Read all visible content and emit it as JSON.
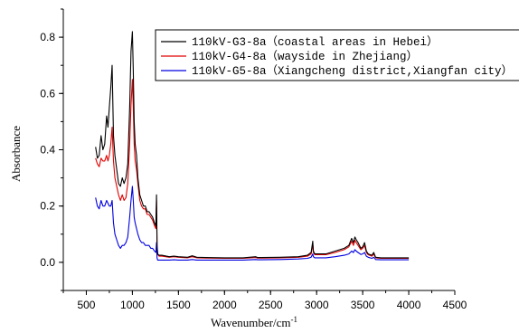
{
  "chart_data": {
    "type": "line",
    "title": "",
    "xlabel": "Wavenumber/cm",
    "xlabel_superscript": "-1",
    "ylabel": "Absorbance",
    "xlim": [
      250,
      4500
    ],
    "ylim": [
      -0.1,
      0.9
    ],
    "x_ticks": [
      500,
      1000,
      1500,
      2000,
      2500,
      3000,
      3500,
      4000,
      4500
    ],
    "x_tick_labels": [
      "500",
      "1000",
      "1500",
      "2000",
      "2500",
      "3000",
      "3500",
      "4000",
      "4500"
    ],
    "y_ticks": [
      0.0,
      0.2,
      0.4,
      0.6,
      0.8
    ],
    "y_tick_labels": [
      "0.0",
      "0.2",
      "0.4",
      "0.6",
      "0.8"
    ],
    "grid": false,
    "legend_position": "top-right",
    "series": [
      {
        "name": "110kV-G3-8a（coastal areas in Hebei）",
        "color": "#000000",
        "x": [
          600,
          620,
          640,
          660,
          680,
          700,
          720,
          735,
          750,
          765,
          780,
          795,
          810,
          830,
          850,
          870,
          890,
          910,
          930,
          950,
          970,
          985,
          1000,
          1010,
          1020,
          1030,
          1045,
          1060,
          1080,
          1100,
          1120,
          1140,
          1160,
          1180,
          1200,
          1220,
          1240,
          1255,
          1262,
          1268,
          1275,
          1290,
          1320,
          1400,
          1450,
          1500,
          1600,
          1650,
          1700,
          1800,
          2000,
          2200,
          2340,
          2360,
          2400,
          2600,
          2800,
          2900,
          2940,
          2958,
          2965,
          2980,
          3000,
          3100,
          3200,
          3300,
          3350,
          3380,
          3400,
          3415,
          3430,
          3450,
          3480,
          3500,
          3520,
          3540,
          3560,
          3600,
          3620,
          3640,
          3700,
          3800,
          3900,
          4000
        ],
        "y": [
          0.41,
          0.37,
          0.38,
          0.45,
          0.4,
          0.42,
          0.52,
          0.48,
          0.55,
          0.62,
          0.7,
          0.45,
          0.38,
          0.33,
          0.28,
          0.27,
          0.3,
          0.28,
          0.3,
          0.35,
          0.55,
          0.75,
          0.82,
          0.68,
          0.5,
          0.42,
          0.38,
          0.3,
          0.24,
          0.22,
          0.2,
          0.2,
          0.18,
          0.18,
          0.17,
          0.16,
          0.14,
          0.13,
          0.24,
          0.06,
          0.03,
          0.025,
          0.025,
          0.02,
          0.022,
          0.02,
          0.018,
          0.023,
          0.018,
          0.017,
          0.016,
          0.016,
          0.02,
          0.017,
          0.017,
          0.018,
          0.02,
          0.025,
          0.035,
          0.075,
          0.04,
          0.03,
          0.03,
          0.03,
          0.04,
          0.05,
          0.06,
          0.085,
          0.07,
          0.09,
          0.08,
          0.07,
          0.05,
          0.055,
          0.07,
          0.04,
          0.03,
          0.025,
          0.035,
          0.018,
          0.016,
          0.016,
          0.016,
          0.016
        ]
      },
      {
        "name": "110kV-G4-8a（wayside in Zhejiang）",
        "color": "#e00000",
        "x": [
          600,
          620,
          640,
          660,
          680,
          700,
          720,
          735,
          750,
          765,
          780,
          795,
          810,
          830,
          850,
          870,
          890,
          910,
          930,
          950,
          970,
          985,
          1000,
          1010,
          1020,
          1030,
          1045,
          1060,
          1080,
          1100,
          1120,
          1140,
          1160,
          1180,
          1200,
          1220,
          1240,
          1255,
          1262,
          1268,
          1275,
          1290,
          1320,
          1400,
          1450,
          1500,
          1600,
          1650,
          1700,
          1800,
          2000,
          2200,
          2340,
          2360,
          2400,
          2600,
          2800,
          2900,
          2940,
          2958,
          2965,
          2980,
          3000,
          3100,
          3200,
          3300,
          3350,
          3380,
          3400,
          3415,
          3430,
          3450,
          3480,
          3500,
          3520,
          3540,
          3560,
          3600,
          3620,
          3640,
          3700,
          3800,
          3900,
          4000
        ],
        "y": [
          0.37,
          0.35,
          0.34,
          0.37,
          0.36,
          0.36,
          0.38,
          0.36,
          0.38,
          0.42,
          0.48,
          0.36,
          0.3,
          0.27,
          0.24,
          0.22,
          0.24,
          0.22,
          0.23,
          0.28,
          0.42,
          0.56,
          0.65,
          0.55,
          0.42,
          0.36,
          0.33,
          0.28,
          0.22,
          0.2,
          0.19,
          0.19,
          0.17,
          0.17,
          0.16,
          0.15,
          0.13,
          0.12,
          0.22,
          0.055,
          0.028,
          0.022,
          0.022,
          0.018,
          0.02,
          0.018,
          0.016,
          0.02,
          0.016,
          0.015,
          0.014,
          0.014,
          0.017,
          0.015,
          0.015,
          0.016,
          0.018,
          0.022,
          0.03,
          0.065,
          0.035,
          0.027,
          0.027,
          0.027,
          0.035,
          0.045,
          0.055,
          0.075,
          0.06,
          0.078,
          0.07,
          0.06,
          0.045,
          0.05,
          0.06,
          0.035,
          0.027,
          0.022,
          0.03,
          0.016,
          0.014,
          0.014,
          0.014,
          0.014
        ]
      },
      {
        "name": "110kV-G5-8a（Xiangcheng district,Xiangfan city）",
        "color": "#0000e0",
        "x": [
          600,
          620,
          640,
          660,
          680,
          700,
          720,
          735,
          750,
          765,
          780,
          795,
          810,
          830,
          850,
          870,
          890,
          910,
          930,
          950,
          970,
          985,
          1000,
          1010,
          1020,
          1030,
          1045,
          1060,
          1080,
          1100,
          1120,
          1140,
          1160,
          1180,
          1200,
          1220,
          1240,
          1255,
          1262,
          1268,
          1275,
          1290,
          1320,
          1400,
          1450,
          1500,
          1600,
          1650,
          1700,
          1800,
          2000,
          2200,
          2340,
          2360,
          2400,
          2600,
          2800,
          2900,
          2940,
          2958,
          2965,
          2980,
          3000,
          3100,
          3200,
          3300,
          3350,
          3380,
          3400,
          3415,
          3430,
          3450,
          3480,
          3500,
          3520,
          3540,
          3560,
          3600,
          3620,
          3640,
          3700,
          3800,
          3900,
          4000
        ],
        "y": [
          0.23,
          0.2,
          0.19,
          0.22,
          0.2,
          0.2,
          0.22,
          0.21,
          0.2,
          0.2,
          0.22,
          0.14,
          0.1,
          0.08,
          0.06,
          0.05,
          0.06,
          0.06,
          0.07,
          0.09,
          0.16,
          0.22,
          0.27,
          0.22,
          0.16,
          0.14,
          0.12,
          0.1,
          0.08,
          0.07,
          0.07,
          0.06,
          0.06,
          0.06,
          0.05,
          0.05,
          0.04,
          0.035,
          0.07,
          0.015,
          0.008,
          0.008,
          0.008,
          0.008,
          0.009,
          0.008,
          0.008,
          0.01,
          0.008,
          0.008,
          0.008,
          0.008,
          0.01,
          0.009,
          0.009,
          0.01,
          0.012,
          0.014,
          0.018,
          0.03,
          0.02,
          0.016,
          0.016,
          0.016,
          0.02,
          0.025,
          0.03,
          0.04,
          0.035,
          0.045,
          0.04,
          0.035,
          0.028,
          0.03,
          0.035,
          0.022,
          0.018,
          0.014,
          0.018,
          0.01,
          0.009,
          0.009,
          0.009,
          0.009
        ]
      }
    ]
  }
}
